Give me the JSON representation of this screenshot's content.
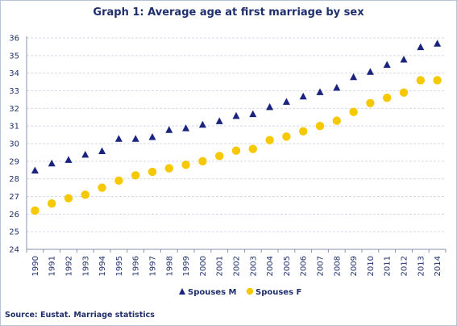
{
  "chart_data": {
    "type": "scatter",
    "title": "Graph 1: Average age at first marriage by sex",
    "xlabel": "",
    "ylabel": "",
    "ylim": [
      24,
      36
    ],
    "yticks": [
      24,
      25,
      26,
      27,
      28,
      29,
      30,
      31,
      32,
      33,
      34,
      35,
      36
    ],
    "grid": true,
    "legend_position": "bottom",
    "categories": [
      "1990",
      "1991",
      "1992",
      "1993",
      "1994",
      "1995",
      "1996",
      "1997",
      "1998",
      "1999",
      "2000",
      "2001",
      "2002",
      "2003",
      "2004",
      "2005",
      "2006",
      "2007",
      "2008",
      "2009",
      "2010",
      "2011",
      "2012",
      "2013",
      "2014"
    ],
    "series": [
      {
        "name": "Spouses M",
        "marker": "triangle",
        "color": "#1a237e",
        "values": [
          28.5,
          28.9,
          29.1,
          29.4,
          29.6,
          30.3,
          30.3,
          30.4,
          30.8,
          30.9,
          31.1,
          31.3,
          31.6,
          31.7,
          32.1,
          32.4,
          32.7,
          32.95,
          33.2,
          33.8,
          34.1,
          34.5,
          34.8,
          35.5,
          35.7
        ]
      },
      {
        "name": "Spouses F",
        "marker": "circle",
        "color": "#f5c800",
        "values": [
          26.2,
          26.6,
          26.9,
          27.1,
          27.5,
          27.9,
          28.2,
          28.4,
          28.6,
          28.8,
          29.0,
          29.3,
          29.6,
          29.7,
          30.2,
          30.4,
          30.7,
          31.0,
          31.3,
          31.8,
          32.3,
          32.6,
          32.9,
          33.6,
          33.6
        ]
      }
    ]
  },
  "source": "Source: Eustat. Marriage statistics"
}
